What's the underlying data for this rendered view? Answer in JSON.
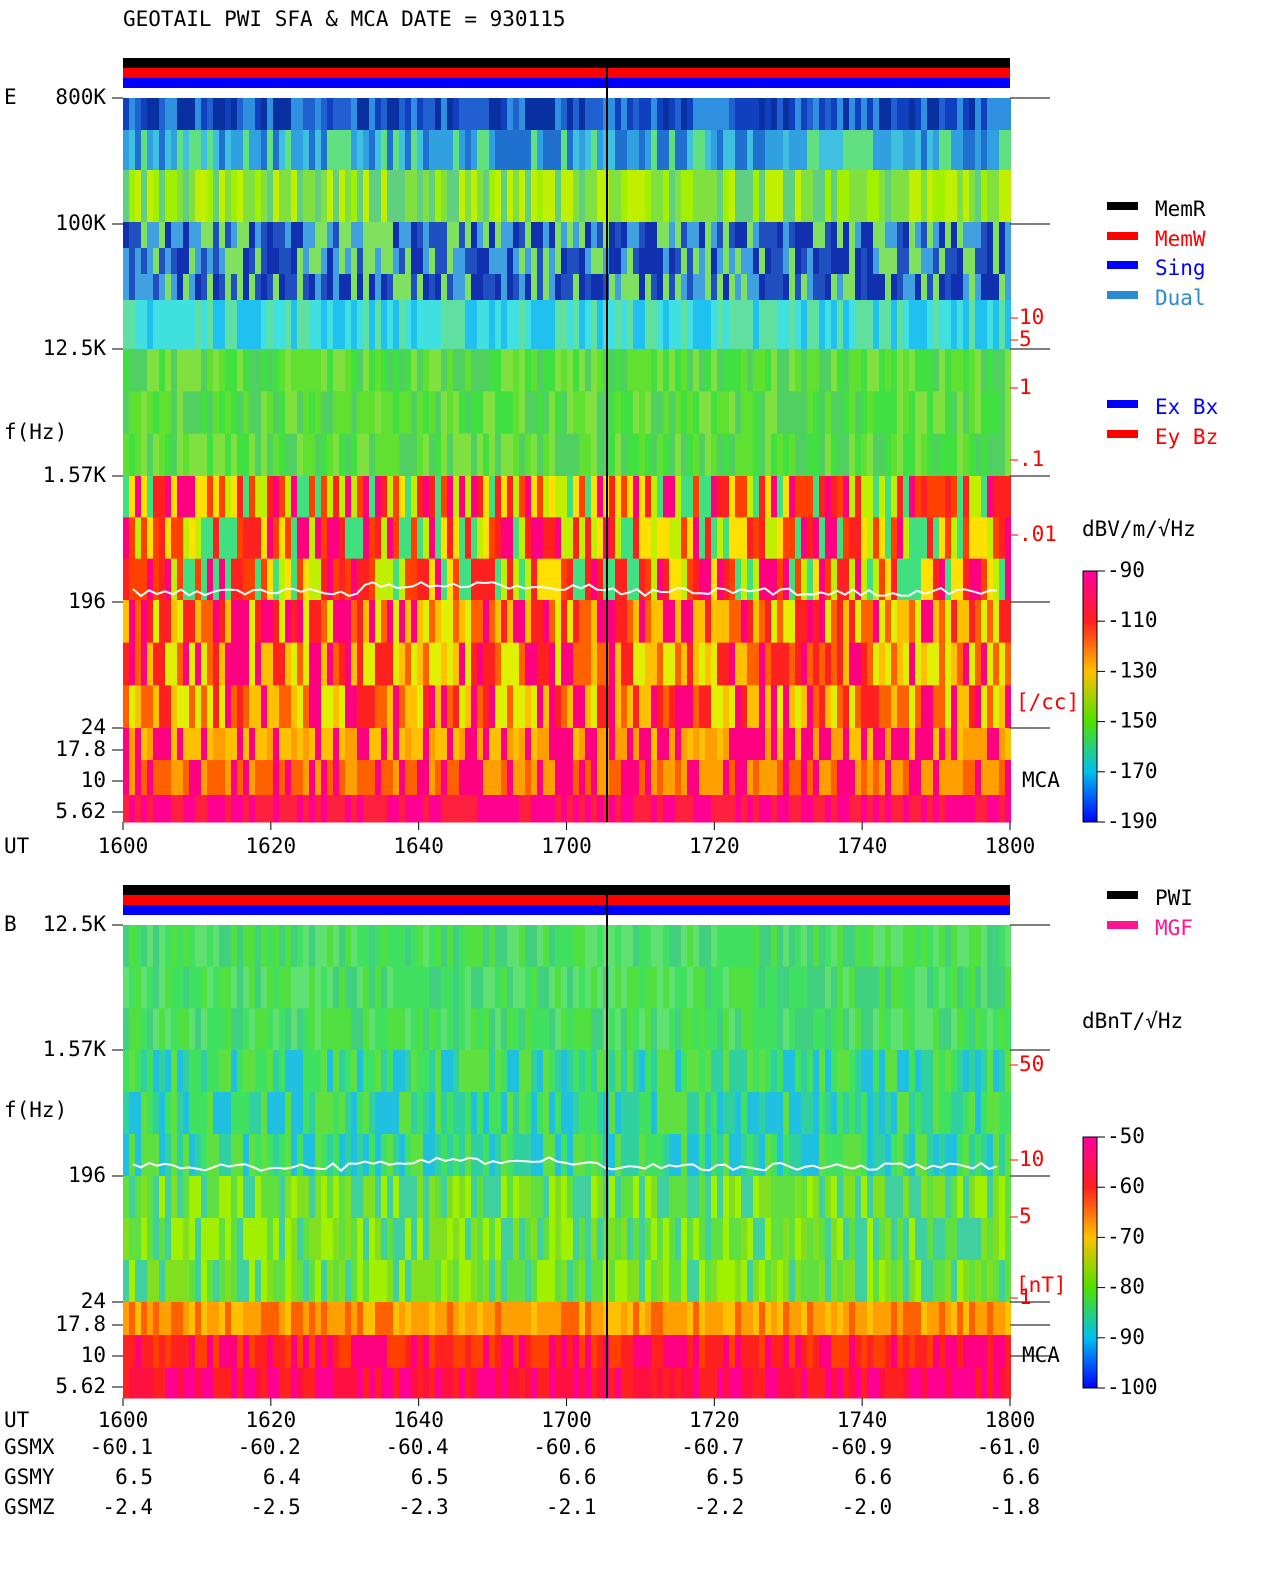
{
  "title": "GEOTAIL  PWI SFA & MCA   DATE = 930115",
  "panels": [
    {
      "label": "E",
      "ylabel": "f(Hz)",
      "yticks": [
        "800K",
        "100K",
        "12.5K",
        "1.57K",
        "196",
        "24",
        "17.8",
        "10",
        "5.62"
      ],
      "xlabel": "UT",
      "xticks": [
        "1600",
        "1620",
        "1640",
        "1700",
        "1720",
        "1740",
        "1800"
      ],
      "right_ticks": [
        "10",
        "5",
        "1",
        ".1",
        ".01"
      ],
      "right_unit": "[/cc]",
      "mca_label": "MCA",
      "legend": [
        {
          "name": "MemR",
          "color": "#000000"
        },
        {
          "name": "MemW",
          "color": "#ff0000"
        },
        {
          "name": "Sing",
          "color": "#0000ff"
        },
        {
          "name": "Dual",
          "color": "#2a8cd0"
        }
      ],
      "legend2": [
        {
          "name": "Ex Bx",
          "color": "#0000ff"
        },
        {
          "name": "Ey Bz",
          "color": "#ff0000"
        }
      ],
      "colorbar": {
        "label": "dBV/m/√Hz",
        "lim": [
          -190,
          -90
        ],
        "ticks": [
          -90,
          -110,
          -130,
          -150,
          -170,
          -190
        ]
      }
    },
    {
      "label": "B",
      "ylabel": "f(Hz)",
      "yticks": [
        "12.5K",
        "1.57K",
        "196",
        "24",
        "17.8",
        "10",
        "5.62"
      ],
      "xlabel": "UT",
      "xticks": [
        "1600",
        "1620",
        "1640",
        "1700",
        "1720",
        "1740",
        "1800"
      ],
      "right_ticks": [
        "50",
        "10",
        "5",
        "1"
      ],
      "right_unit": "[nT]",
      "mca_label": "MCA",
      "legend": [
        {
          "name": "PWI",
          "color": "#000000"
        },
        {
          "name": "MGF",
          "color": "#ff1493"
        }
      ],
      "colorbar": {
        "label": "dBnT/√Hz",
        "lim": [
          -100,
          -50
        ],
        "ticks": [
          -50,
          -60,
          -70,
          -80,
          -90,
          -100
        ]
      }
    }
  ],
  "orbit": [
    {
      "name": "GSMX",
      "values": [
        "-60.1",
        "-60.2",
        "-60.4",
        "-60.6",
        "-60.7",
        "-60.9",
        "-61.0"
      ]
    },
    {
      "name": "GSMY",
      "values": [
        "6.5",
        "6.4",
        "6.5",
        "6.6",
        "6.5",
        "6.6",
        "6.6"
      ]
    },
    {
      "name": "GSMZ",
      "values": [
        "-2.4",
        "-2.5",
        "-2.3",
        "-2.1",
        "-2.2",
        "-2.0",
        "-1.8"
      ]
    }
  ]
}
